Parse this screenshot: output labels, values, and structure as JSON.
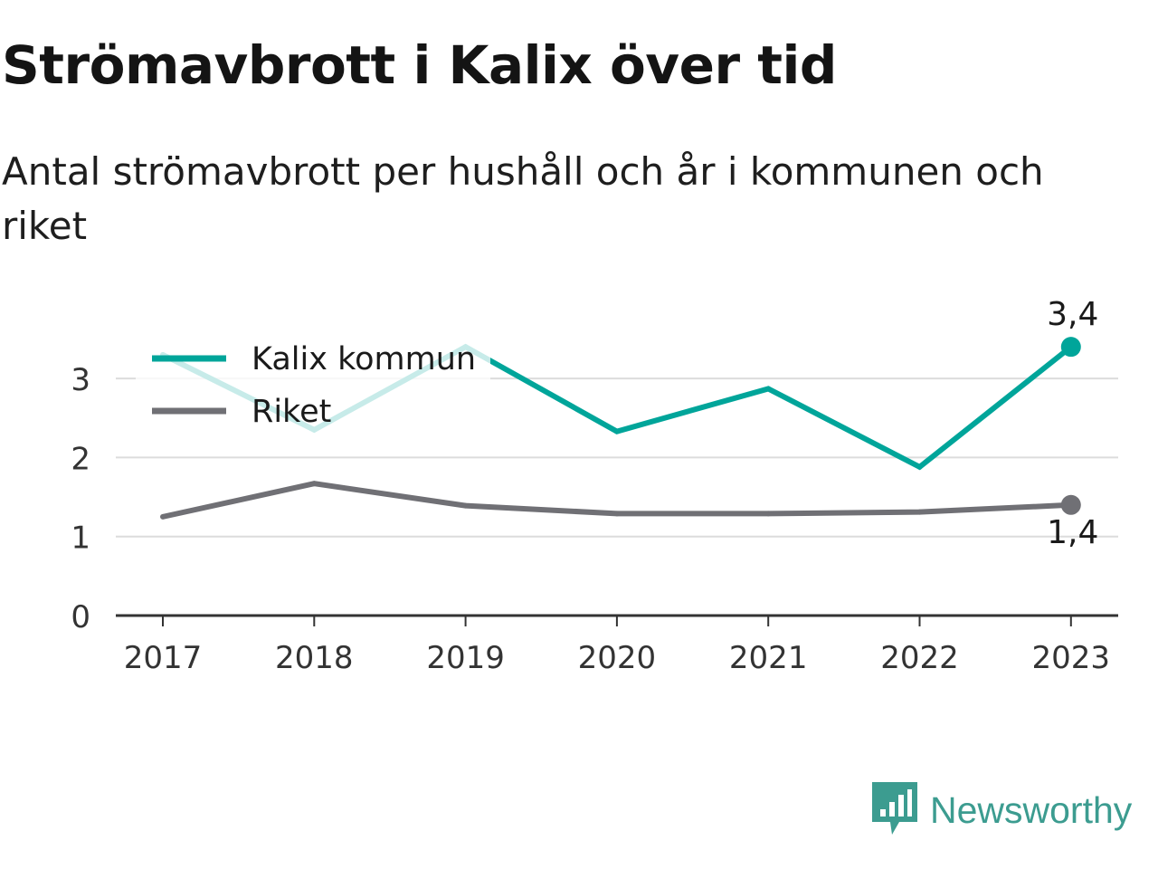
{
  "header": {
    "title": "Strömavbrott i Kalix över tid",
    "subtitle": "Antal strömavbrott per hushåll och år i kommunen och riket"
  },
  "chart_data": {
    "type": "line",
    "title": "Strömavbrott i Kalix över tid",
    "subtitle": "Antal strömavbrott per hushåll och år i kommunen och riket",
    "xlabel": "",
    "ylabel": "",
    "categories": [
      "2017",
      "2018",
      "2019",
      "2020",
      "2021",
      "2022",
      "2023"
    ],
    "ylim": [
      0,
      3.5
    ],
    "yticks": [
      0,
      1,
      2,
      3
    ],
    "grid": true,
    "legend_placement": "top-left",
    "series": [
      {
        "name": "Kalix kommun",
        "color": "#00a59a",
        "values": [
          3.3,
          2.35,
          3.4,
          2.33,
          2.87,
          1.88,
          3.4
        ],
        "end_label": "3,4"
      },
      {
        "name": "Riket",
        "color": "#707075",
        "values": [
          1.25,
          1.67,
          1.39,
          1.29,
          1.29,
          1.31,
          1.4
        ],
        "end_label": "1,4"
      }
    ]
  },
  "brand": {
    "name": "Newsworthy",
    "color": "#3c9c90",
    "icon": "newsworthy-logo-icon"
  }
}
